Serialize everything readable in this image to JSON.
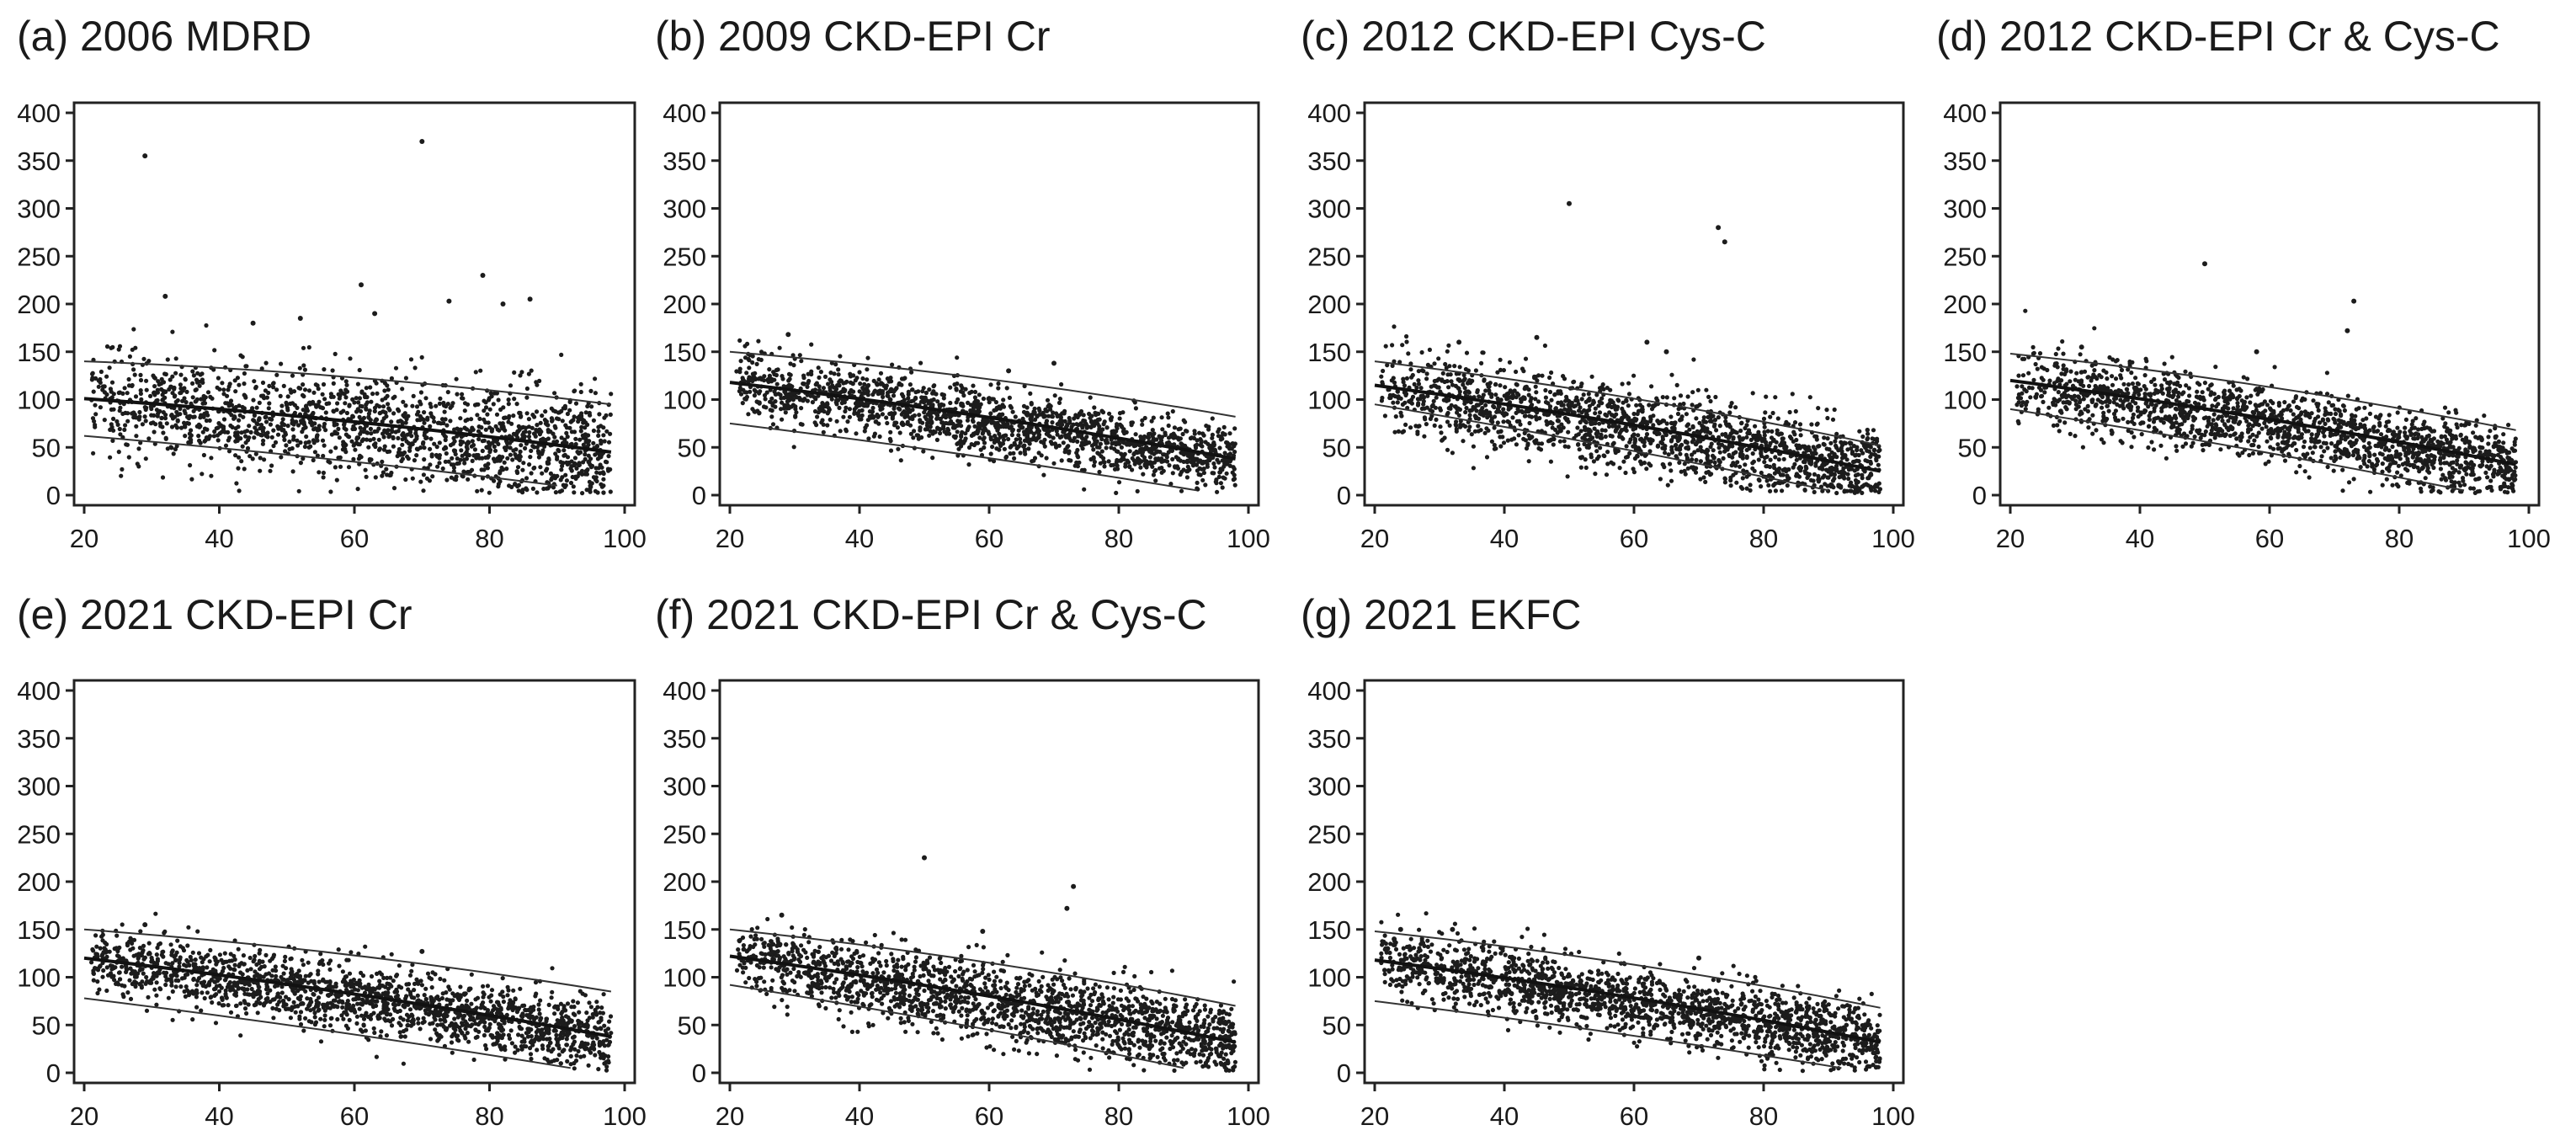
{
  "chart_data": [
    {
      "id": "a",
      "title": "(a) 2006 MDRD",
      "type": "scatter",
      "xlim": [
        20,
        100
      ],
      "ylim": [
        0,
        400
      ],
      "xticks": [
        20,
        40,
        60,
        80,
        100
      ],
      "yticks": [
        0,
        50,
        100,
        150,
        200,
        250,
        300,
        350,
        400
      ],
      "trend": {
        "start": [
          20,
          101
        ],
        "end": [
          98,
          45
        ]
      },
      "upper": {
        "start": [
          20,
          140
        ],
        "end": [
          98,
          95
        ]
      },
      "lower": {
        "start": [
          20,
          62
        ],
        "end": [
          90,
          10
        ]
      },
      "spread": 28,
      "density": 1.0,
      "outliers": [
        [
          29,
          355
        ],
        [
          70,
          370
        ],
        [
          32,
          208
        ],
        [
          61,
          220
        ],
        [
          79,
          230
        ],
        [
          82,
          200
        ],
        [
          74,
          203
        ],
        [
          63,
          190
        ],
        [
          45,
          180
        ],
        [
          52,
          185
        ],
        [
          86,
          205
        ]
      ]
    },
    {
      "id": "b",
      "title": "(b) 2009 CKD-EPI Cr",
      "type": "scatter",
      "xlim": [
        20,
        100
      ],
      "ylim": [
        0,
        400
      ],
      "xticks": [
        20,
        40,
        60,
        80,
        100
      ],
      "yticks": [
        0,
        50,
        100,
        150,
        200,
        250,
        300,
        350,
        400
      ],
      "trend": {
        "start": [
          20,
          118
        ],
        "end": [
          98,
          38
        ]
      },
      "upper": {
        "start": [
          20,
          150
        ],
        "end": [
          98,
          82
        ]
      },
      "lower": {
        "start": [
          20,
          75
        ],
        "end": [
          92,
          5
        ]
      },
      "spread": 18,
      "density": 1.0,
      "outliers": [
        [
          29,
          168
        ],
        [
          70,
          138
        ],
        [
          63,
          130
        ]
      ]
    },
    {
      "id": "c",
      "title": "(c) 2012 CKD-EPI Cys-C",
      "type": "scatter",
      "xlim": [
        20,
        100
      ],
      "ylim": [
        0,
        400
      ],
      "xticks": [
        20,
        40,
        60,
        80,
        100
      ],
      "yticks": [
        0,
        50,
        100,
        150,
        200,
        250,
        300,
        350,
        400
      ],
      "trend": {
        "start": [
          20,
          115
        ],
        "end": [
          98,
          25
        ]
      },
      "upper": {
        "start": [
          20,
          140
        ],
        "end": [
          98,
          52
        ]
      },
      "lower": {
        "start": [
          20,
          95
        ],
        "end": [
          90,
          5
        ]
      },
      "spread": 22,
      "density": 1.0,
      "outliers": [
        [
          50,
          305
        ],
        [
          73,
          280
        ],
        [
          74,
          265
        ],
        [
          45,
          165
        ],
        [
          62,
          160
        ],
        [
          65,
          150
        ],
        [
          33,
          160
        ]
      ]
    },
    {
      "id": "d",
      "title": "(d) 2012 CKD-EPI Cr & Cys-C",
      "type": "scatter",
      "xlim": [
        20,
        100
      ],
      "ylim": [
        0,
        400
      ],
      "xticks": [
        20,
        40,
        60,
        80,
        100
      ],
      "yticks": [
        0,
        50,
        100,
        150,
        200,
        250,
        300,
        350,
        400
      ],
      "trend": {
        "start": [
          20,
          120
        ],
        "end": [
          98,
          32
        ]
      },
      "upper": {
        "start": [
          20,
          148
        ],
        "end": [
          98,
          68
        ]
      },
      "lower": {
        "start": [
          20,
          90
        ],
        "end": [
          90,
          5
        ]
      },
      "spread": 20,
      "density": 1.0,
      "outliers": [
        [
          50,
          242
        ],
        [
          73,
          203
        ],
        [
          72,
          172
        ],
        [
          58,
          150
        ],
        [
          31,
          155
        ]
      ]
    },
    {
      "id": "e",
      "title": "(e) 2021 CKD-EPI Cr",
      "type": "scatter",
      "xlim": [
        20,
        100
      ],
      "ylim": [
        0,
        400
      ],
      "xticks": [
        20,
        40,
        60,
        80,
        100
      ],
      "yticks": [
        0,
        50,
        100,
        150,
        200,
        250,
        300,
        350,
        400
      ],
      "trend": {
        "start": [
          20,
          120
        ],
        "end": [
          98,
          38
        ]
      },
      "upper": {
        "start": [
          20,
          150
        ],
        "end": [
          98,
          85
        ]
      },
      "lower": {
        "start": [
          20,
          78
        ],
        "end": [
          92,
          5
        ]
      },
      "spread": 18,
      "density": 1.0,
      "outliers": [
        [
          29,
          155
        ],
        [
          70,
          127
        ]
      ]
    },
    {
      "id": "f",
      "title": "(f) 2021 CKD-EPI Cr & Cys-C",
      "type": "scatter",
      "xlim": [
        20,
        100
      ],
      "ylim": [
        0,
        400
      ],
      "xticks": [
        20,
        40,
        60,
        80,
        100
      ],
      "yticks": [
        0,
        50,
        100,
        150,
        200,
        250,
        300,
        350,
        400
      ],
      "trend": {
        "start": [
          20,
          122
        ],
        "end": [
          98,
          32
        ]
      },
      "upper": {
        "start": [
          20,
          150
        ],
        "end": [
          98,
          70
        ]
      },
      "lower": {
        "start": [
          20,
          92
        ],
        "end": [
          90,
          5
        ]
      },
      "spread": 20,
      "density": 1.0,
      "outliers": [
        [
          50,
          225
        ],
        [
          73,
          195
        ],
        [
          72,
          172
        ],
        [
          28,
          165
        ],
        [
          59,
          148
        ]
      ]
    },
    {
      "id": "g",
      "title": "(g) 2021 EKFC",
      "type": "scatter",
      "xlim": [
        20,
        100
      ],
      "ylim": [
        0,
        400
      ],
      "xticks": [
        20,
        40,
        60,
        80,
        100
      ],
      "yticks": [
        0,
        50,
        100,
        150,
        200,
        250,
        300,
        350,
        400
      ],
      "trend": {
        "start": [
          20,
          118
        ],
        "end": [
          98,
          32
        ]
      },
      "upper": {
        "start": [
          20,
          148
        ],
        "end": [
          98,
          68
        ]
      },
      "lower": {
        "start": [
          20,
          75
        ],
        "end": [
          92,
          5
        ]
      },
      "spread": 18,
      "density": 1.0,
      "outliers": [
        [
          24,
          150
        ],
        [
          23,
          140
        ],
        [
          22,
          130
        ],
        [
          70,
          120
        ],
        [
          32,
          150
        ]
      ]
    }
  ]
}
